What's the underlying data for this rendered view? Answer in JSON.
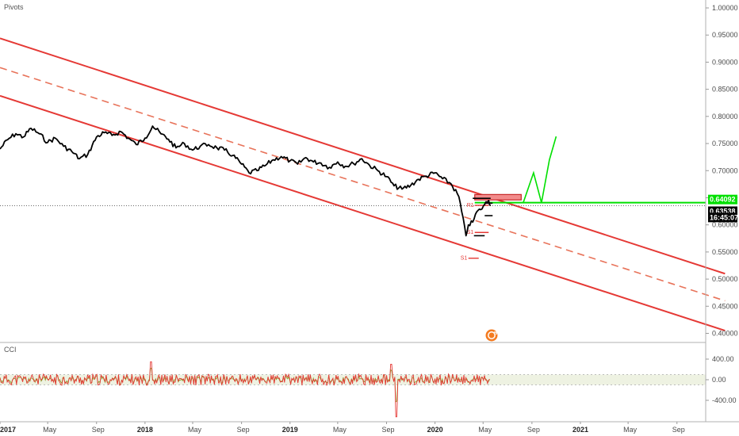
{
  "indicators": {
    "main": "Pivots",
    "sub": "CCI"
  },
  "chart_data": [
    {
      "type": "line",
      "series": [],
      "y_ticks": [
        "1.00000",
        "0.95000",
        "0.90000",
        "0.85000",
        "0.80000",
        "0.75000",
        "0.70000",
        "0.65000",
        "0.60000",
        "0.55000",
        "0.50000",
        "0.45000",
        "0.40000"
      ],
      "ylim": [
        0.39,
        1.005
      ],
      "x_ticks": [
        {
          "label": "2017",
          "date": "2017-01-01",
          "year": true
        },
        {
          "label": "May",
          "date": "2017-05-01",
          "year": false
        },
        {
          "label": "Sep",
          "date": "2017-09-01",
          "year": false
        },
        {
          "label": "2018",
          "date": "2018-01-01",
          "year": true
        },
        {
          "label": "May",
          "date": "2018-05-01",
          "year": false
        },
        {
          "label": "Sep",
          "date": "2018-09-01",
          "year": false
        },
        {
          "label": "2019",
          "date": "2019-01-01",
          "year": true
        },
        {
          "label": "May",
          "date": "2019-05-01",
          "year": false
        },
        {
          "label": "Sep",
          "date": "2019-09-01",
          "year": false
        },
        {
          "label": "2020",
          "date": "2020-01-01",
          "year": true
        },
        {
          "label": "May",
          "date": "2020-05-01",
          "year": false
        },
        {
          "label": "Sep",
          "date": "2020-09-01",
          "year": false
        },
        {
          "label": "2021",
          "date": "2021-01-01",
          "year": true
        },
        {
          "label": "May",
          "date": "2021-05-01",
          "year": false
        },
        {
          "label": "Sep",
          "date": "2021-09-01",
          "year": false
        }
      ],
      "price": {
        "color": "#000000",
        "points": [
          [
            "2017-01-01",
            0.74
          ],
          [
            "2017-01-20",
            0.757
          ],
          [
            "2017-02-10",
            0.768
          ],
          [
            "2017-03-01",
            0.762
          ],
          [
            "2017-03-20",
            0.778
          ],
          [
            "2017-04-10",
            0.768
          ],
          [
            "2017-05-01",
            0.752
          ],
          [
            "2017-05-20",
            0.76
          ],
          [
            "2017-06-10",
            0.745
          ],
          [
            "2017-07-01",
            0.735
          ],
          [
            "2017-07-20",
            0.722
          ],
          [
            "2017-08-10",
            0.73
          ],
          [
            "2017-09-01",
            0.762
          ],
          [
            "2017-09-20",
            0.77
          ],
          [
            "2017-10-10",
            0.765
          ],
          [
            "2017-11-01",
            0.772
          ],
          [
            "2017-11-20",
            0.76
          ],
          [
            "2017-12-10",
            0.748
          ],
          [
            "2018-01-01",
            0.76
          ],
          [
            "2018-01-20",
            0.782
          ],
          [
            "2018-02-10",
            0.768
          ],
          [
            "2018-03-01",
            0.758
          ],
          [
            "2018-03-20",
            0.742
          ],
          [
            "2018-04-10",
            0.75
          ],
          [
            "2018-05-01",
            0.738
          ],
          [
            "2018-05-20",
            0.745
          ],
          [
            "2018-06-10",
            0.748
          ],
          [
            "2018-07-01",
            0.742
          ],
          [
            "2018-07-20",
            0.738
          ],
          [
            "2018-08-10",
            0.728
          ],
          [
            "2018-09-01",
            0.712
          ],
          [
            "2018-09-20",
            0.696
          ],
          [
            "2018-10-10",
            0.7
          ],
          [
            "2018-11-01",
            0.71
          ],
          [
            "2018-11-20",
            0.72
          ],
          [
            "2018-12-10",
            0.726
          ],
          [
            "2019-01-01",
            0.718
          ],
          [
            "2019-01-20",
            0.712
          ],
          [
            "2019-02-10",
            0.724
          ],
          [
            "2019-03-01",
            0.716
          ],
          [
            "2019-03-20",
            0.714
          ],
          [
            "2019-04-10",
            0.706
          ],
          [
            "2019-05-01",
            0.716
          ],
          [
            "2019-05-20",
            0.708
          ],
          [
            "2019-06-10",
            0.713
          ],
          [
            "2019-07-01",
            0.722
          ],
          [
            "2019-07-20",
            0.71
          ],
          [
            "2019-08-10",
            0.7
          ],
          [
            "2019-09-01",
            0.689
          ],
          [
            "2019-09-20",
            0.672
          ],
          [
            "2019-10-10",
            0.666
          ],
          [
            "2019-11-01",
            0.673
          ],
          [
            "2019-11-20",
            0.684
          ],
          [
            "2019-12-10",
            0.69
          ],
          [
            "2020-01-01",
            0.696
          ],
          [
            "2020-01-20",
            0.685
          ],
          [
            "2020-02-10",
            0.676
          ],
          [
            "2020-03-01",
            0.652
          ],
          [
            "2020-03-19",
            0.58
          ],
          [
            "2020-03-25",
            0.6
          ],
          [
            "2020-04-05",
            0.605
          ],
          [
            "2020-04-15",
            0.624
          ],
          [
            "2020-04-25",
            0.628
          ],
          [
            "2020-05-05",
            0.638
          ],
          [
            "2020-05-15",
            0.645
          ],
          [
            "2020-05-20",
            0.6354
          ]
        ]
      },
      "channel": {
        "color": "#e53935",
        "upper": [
          [
            "2017-01-01",
            0.944
          ],
          [
            "2021-12-31",
            0.51
          ]
        ],
        "middle": [
          [
            "2017-01-01",
            0.89
          ],
          [
            "2021-12-31",
            0.46
          ]
        ],
        "lower": [
          [
            "2017-01-01",
            0.838
          ],
          [
            "2021-12-31",
            0.405
          ]
        ]
      },
      "pivots": [
        {
          "label": "R1",
          "y": 0.636,
          "from": "2020-04-10",
          "to": "2020-05-15"
        },
        {
          "label": "S1",
          "y": 0.586,
          "from": "2020-04-10",
          "to": "2020-05-15"
        },
        {
          "label": "S1",
          "y": 0.5385,
          "from": "2020-03-25",
          "to": "2020-04-20"
        }
      ],
      "pivot_black_levels": [
        {
          "y": 0.649,
          "from": "2020-04-05",
          "to": "2020-05-20"
        },
        {
          "y": 0.64,
          "from": "2020-05-05",
          "to": "2020-05-25"
        },
        {
          "y": 0.617,
          "from": "2020-05-05",
          "to": "2020-05-25"
        },
        {
          "y": 0.58,
          "from": "2020-04-08",
          "to": "2020-05-05"
        }
      ],
      "resistance_box": {
        "color": "#f28b8b",
        "y_low": 0.646,
        "y_high": 0.656,
        "from": "2020-04-10",
        "to": "2020-08-05"
      },
      "horizontal_line": {
        "color": "#00e000",
        "y": 0.6409
      },
      "forecast": {
        "color": "#00e000",
        "points": [
          [
            "2020-08-10",
            0.6409
          ],
          [
            "2020-09-05",
            0.696
          ],
          [
            "2020-09-25",
            0.6409
          ],
          [
            "2020-10-15",
            0.72
          ],
          [
            "2020-11-01",
            0.763
          ]
        ]
      },
      "last_price_line": {
        "y": 0.6354
      },
      "price_tags": [
        {
          "text": "0.64092",
          "value": 0.64092,
          "bg": "#00e000",
          "fg": "#ffffff"
        },
        {
          "text": "0.63538",
          "value": 0.63538,
          "bg": "#000000",
          "fg": "#ffffff"
        },
        {
          "text": "16:45:07",
          "value": 0.6195,
          "bg": "#000000",
          "fg": "#ffffff"
        }
      ]
    },
    {
      "type": "line",
      "series": [],
      "y_ticks": [
        "400.00",
        "0.00",
        "-400.00"
      ],
      "ylim": [
        -780,
        700
      ],
      "band": {
        "upper": 100,
        "lower": -100,
        "color": "#eef2e2"
      },
      "cci_colors": {
        "a": "#e53935",
        "b": "#8aa52e"
      }
    }
  ]
}
